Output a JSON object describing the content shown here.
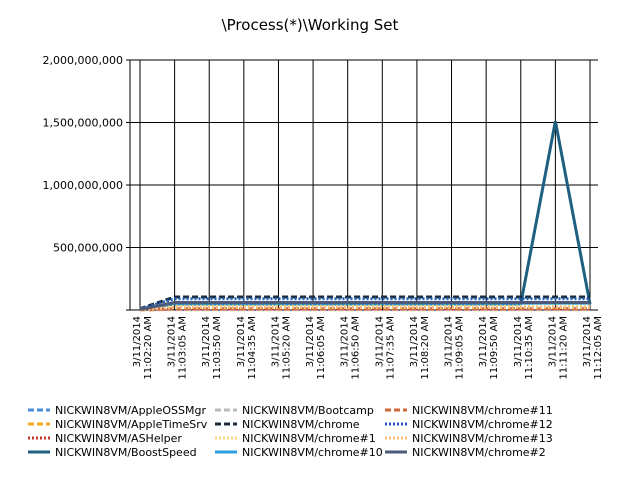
{
  "chart_data": {
    "type": "line",
    "title": "\\Process(*)\\Working Set",
    "categories": [
      [
        "3/11/2014",
        "11:02:20 AM"
      ],
      [
        "3/11/2014",
        "11:03:05 AM"
      ],
      [
        "3/11/2014",
        "11:03:50 AM"
      ],
      [
        "3/11/2014",
        "11:04:35 AM"
      ],
      [
        "3/11/2014",
        "11:05:20 AM"
      ],
      [
        "3/11/2014",
        "11:06:05 AM"
      ],
      [
        "3/11/2014",
        "11:06:50 AM"
      ],
      [
        "3/11/2014",
        "11:07:35 AM"
      ],
      [
        "3/11/2014",
        "11:08:20 AM"
      ],
      [
        "3/11/2014",
        "11:09:05 AM"
      ],
      [
        "3/11/2014",
        "11:09:50 AM"
      ],
      [
        "3/11/2014",
        "11:10:35 AM"
      ],
      [
        "3/11/2014",
        "11:11:20 AM"
      ],
      [
        "3/11/2014",
        "11:12:05 AM"
      ]
    ],
    "ylim": [
      0,
      2000000000
    ],
    "yticks": [
      {
        "value": 500000000,
        "label": "500,000,000"
      },
      {
        "value": 1000000000,
        "label": "1,000,000,000"
      },
      {
        "value": 1500000000,
        "label": "1,500,000,000"
      },
      {
        "value": 2000000000,
        "label": "2,000,000,000"
      }
    ],
    "grid": true,
    "series": [
      {
        "name": "NICKWIN8VM/AppleOSSMgr",
        "color": "#4a90d9",
        "style": "dash",
        "values": [
          2000000,
          5000000,
          5000000,
          5000000,
          5000000,
          5000000,
          5000000,
          5000000,
          5000000,
          5000000,
          5000000,
          5000000,
          5000000,
          5000000
        ]
      },
      {
        "name": "NICKWIN8VM/AppleTimeSrv",
        "color": "#f5a623",
        "style": "dash",
        "values": [
          2000000,
          3000000,
          3000000,
          3000000,
          3000000,
          3000000,
          3000000,
          3000000,
          3000000,
          3000000,
          3000000,
          3000000,
          3000000,
          3000000
        ]
      },
      {
        "name": "NICKWIN8VM/ASHelper",
        "color": "#c0392b",
        "style": "dot",
        "values": [
          3000000,
          8000000,
          8000000,
          8000000,
          8000000,
          8000000,
          8000000,
          8000000,
          8000000,
          8000000,
          8000000,
          8000000,
          8000000,
          8000000
        ]
      },
      {
        "name": "NICKWIN8VM/BoostSpeed",
        "color": "#1f5f7f",
        "style": "solid",
        "values": [
          10000000,
          48000000,
          48000000,
          48000000,
          48000000,
          48000000,
          48000000,
          48000000,
          48000000,
          48000000,
          48000000,
          48000000,
          1510000000,
          48000000
        ]
      },
      {
        "name": "NICKWIN8VM/Bootcamp",
        "color": "#bbbbbb",
        "style": "dash",
        "values": [
          2000000,
          4000000,
          4000000,
          4000000,
          4000000,
          4000000,
          4000000,
          4000000,
          4000000,
          4000000,
          4000000,
          4000000,
          4000000,
          4000000
        ]
      },
      {
        "name": "NICKWIN8VM/chrome",
        "color": "#1a2a3a",
        "style": "dash",
        "values": [
          10000000,
          104000000,
          104000000,
          104000000,
          104000000,
          104000000,
          104000000,
          104000000,
          104000000,
          104000000,
          104000000,
          104000000,
          104000000,
          104000000
        ]
      },
      {
        "name": "NICKWIN8VM/chrome#1",
        "color": "#ffd27f",
        "style": "dot",
        "values": [
          5000000,
          30000000,
          30000000,
          30000000,
          30000000,
          30000000,
          30000000,
          30000000,
          30000000,
          30000000,
          30000000,
          30000000,
          30000000,
          30000000
        ]
      },
      {
        "name": "NICKWIN8VM/chrome#10",
        "color": "#2ca0e0",
        "style": "solid",
        "values": [
          5000000,
          55000000,
          55000000,
          55000000,
          55000000,
          55000000,
          55000000,
          55000000,
          55000000,
          55000000,
          55000000,
          55000000,
          55000000,
          55000000
        ]
      },
      {
        "name": "NICKWIN8VM/chrome#11",
        "color": "#d2693a",
        "style": "dash",
        "values": [
          3000000,
          10000000,
          10000000,
          10000000,
          10000000,
          10000000,
          10000000,
          10000000,
          10000000,
          10000000,
          10000000,
          10000000,
          10000000,
          10000000
        ]
      },
      {
        "name": "NICKWIN8VM/chrome#12",
        "color": "#1f5fbf",
        "style": "dot",
        "values": [
          8000000,
          90000000,
          90000000,
          90000000,
          90000000,
          90000000,
          90000000,
          90000000,
          90000000,
          90000000,
          90000000,
          90000000,
          90000000,
          90000000
        ]
      },
      {
        "name": "NICKWIN8VM/chrome#13",
        "color": "#f5c080",
        "style": "dot",
        "values": [
          4000000,
          20000000,
          20000000,
          20000000,
          20000000,
          20000000,
          20000000,
          20000000,
          20000000,
          20000000,
          20000000,
          20000000,
          20000000,
          20000000
        ]
      },
      {
        "name": "NICKWIN8VM/chrome#2",
        "color": "#4a5a7a",
        "style": "solid",
        "values": [
          6000000,
          60000000,
          60000000,
          60000000,
          60000000,
          60000000,
          60000000,
          60000000,
          60000000,
          60000000,
          60000000,
          60000000,
          60000000,
          60000000
        ]
      }
    ]
  }
}
